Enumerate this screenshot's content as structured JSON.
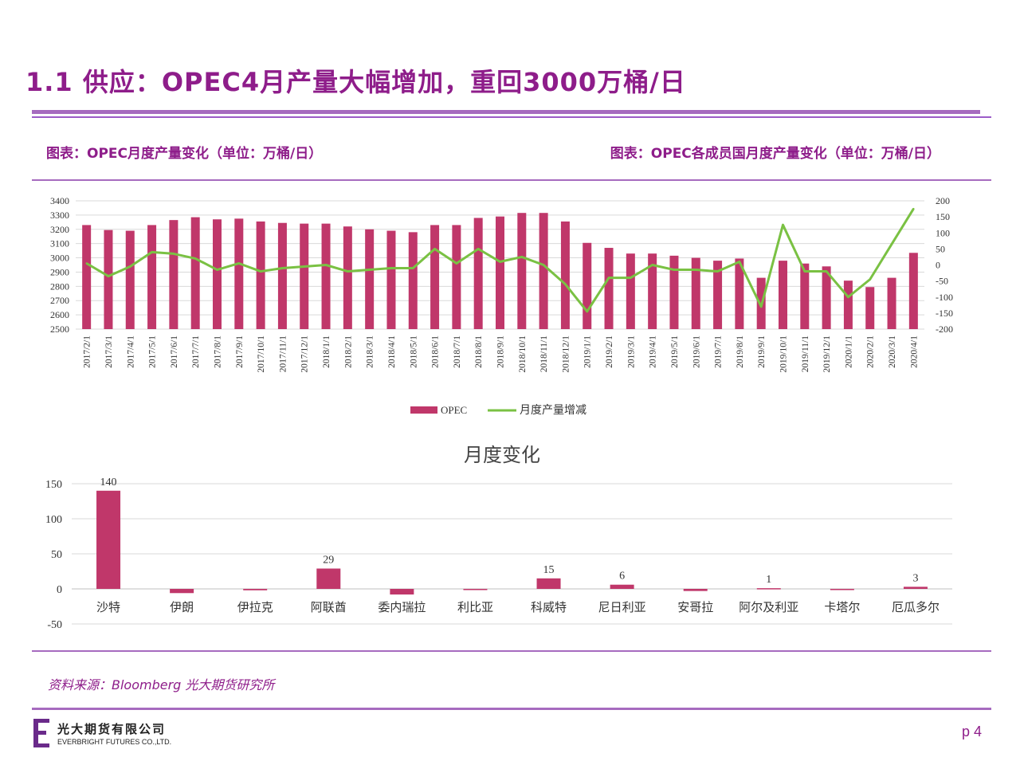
{
  "header": {
    "title": "1.1 供应：OPEC4月产量大幅增加，重回3000万桶/日"
  },
  "captions": {
    "left": "图表：OPEC月度产量变化（单位：万桶/日）",
    "right": "图表：OPEC各成员国月度产量变化（单位：万桶/日）"
  },
  "colors": {
    "accent": "#8e1d8a",
    "bar": "#c0376a",
    "line": "#7ac143",
    "rule": "#a66bbf"
  },
  "chart_data": [
    {
      "type": "bar",
      "title": "",
      "categories": [
        "2017/2/1",
        "2017/3/1",
        "2017/4/1",
        "2017/5/1",
        "2017/6/1",
        "2017/7/1",
        "2017/8/1",
        "2017/9/1",
        "2017/10/1",
        "2017/11/1",
        "2017/12/1",
        "2018/1/1",
        "2018/2/1",
        "2018/3/1",
        "2018/4/1",
        "2018/5/1",
        "2018/6/1",
        "2018/7/1",
        "2018/8/1",
        "2018/9/1",
        "2018/10/1",
        "2018/11/1",
        "2018/12/1",
        "2019/1/1",
        "2019/2/1",
        "2019/3/1",
        "2019/4/1",
        "2019/5/1",
        "2019/6/1",
        "2019/7/1",
        "2019/8/1",
        "2019/9/1",
        "2019/10/1",
        "2019/11/1",
        "2019/12/1",
        "2020/1/1",
        "2020/2/1",
        "2020/3/1",
        "2020/4/1"
      ],
      "series": [
        {
          "name": "OPEC",
          "axis": "left",
          "values": [
            3230,
            3195,
            3190,
            3230,
            3265,
            3285,
            3270,
            3275,
            3255,
            3245,
            3240,
            3240,
            3220,
            3200,
            3190,
            3180,
            3230,
            3230,
            3280,
            3290,
            3315,
            3315,
            3255,
            3105,
            3070,
            3030,
            3030,
            3015,
            3000,
            2980,
            2995,
            2860,
            2980,
            2960,
            2940,
            2840,
            2795,
            2860,
            3035
          ]
        },
        {
          "name": "月度产量增减",
          "axis": "right",
          "type": "line",
          "values": [
            5,
            -35,
            -5,
            40,
            35,
            20,
            -15,
            5,
            -20,
            -10,
            -5,
            0,
            -20,
            -15,
            -10,
            -10,
            50,
            5,
            50,
            10,
            25,
            0,
            -60,
            -145,
            -40,
            -40,
            0,
            -15,
            -15,
            -20,
            10,
            -130,
            125,
            -20,
            -20,
            -100,
            -45,
            65,
            175
          ]
        }
      ],
      "ylim_left": [
        2500,
        3400
      ],
      "yticks_left": [
        2500,
        2600,
        2700,
        2800,
        2900,
        3000,
        3100,
        3200,
        3300,
        3400
      ],
      "ylim_right": [
        -200,
        200
      ],
      "yticks_right": [
        -200,
        -150,
        -100,
        -50,
        0,
        50,
        100,
        150,
        200
      ],
      "grid": true,
      "legend": "bottom"
    },
    {
      "type": "bar",
      "title": "月度变化",
      "categories": [
        "沙特",
        "伊朗",
        "伊拉克",
        "阿联酋",
        "委内瑞拉",
        "利比亚",
        "科威特",
        "尼日利亚",
        "安哥拉",
        "阿尔及利亚",
        "卡塔尔",
        "厄瓜多尔"
      ],
      "values": [
        140,
        -6,
        -2,
        29,
        -8,
        -1,
        15,
        6,
        -3,
        1,
        -1,
        3
      ],
      "data_labels": [
        "140",
        "",
        "",
        "29",
        "",
        "",
        "15",
        "6",
        "",
        "1",
        "",
        "3"
      ],
      "ylim": [
        -50,
        150
      ],
      "yticks": [
        -50,
        0,
        50,
        100,
        150
      ],
      "grid": true
    }
  ],
  "footer": {
    "source": "资料来源：Bloomberg 光大期货研究所",
    "logo_cn": "光大期货有限公司",
    "logo_en": "EVERBRIGHT FUTURES CO.,LTD.",
    "page": "p 4"
  }
}
